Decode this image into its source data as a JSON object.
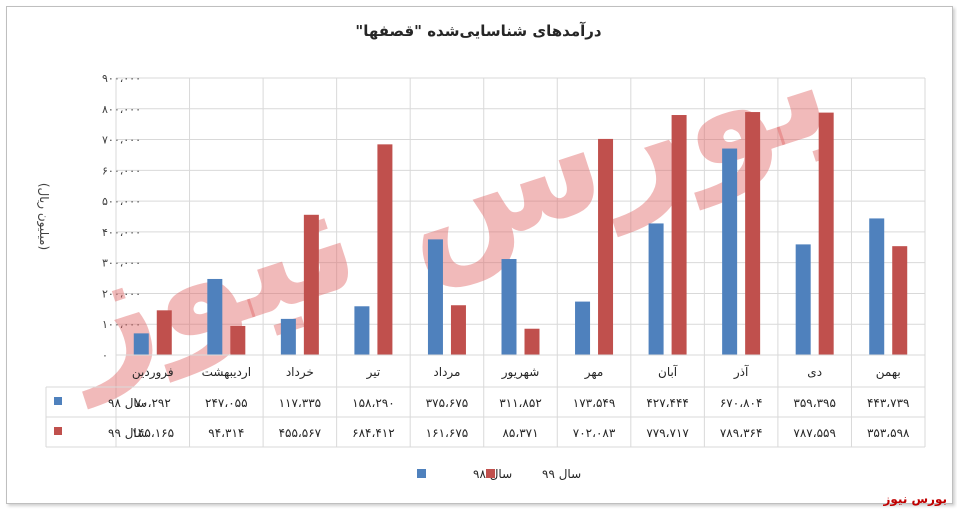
{
  "source_label": "بورس نیوز",
  "chart_data": {
    "type": "bar",
    "title": "درآمدهای شناسایی‌شده \"قصفها\"",
    "ylabel": "(میلیون ریال)",
    "ylim": [
      0,
      900000
    ],
    "yticks": [
      "۰",
      "۱۰۰،۰۰۰",
      "۲۰۰،۰۰۰",
      "۳۰۰،۰۰۰",
      "۴۰۰،۰۰۰",
      "۵۰۰،۰۰۰",
      "۶۰۰،۰۰۰",
      "۷۰۰،۰۰۰",
      "۸۰۰،۰۰۰",
      "۹۰۰،۰۰۰"
    ],
    "categories": [
      "فروردین",
      "اردیبهشت",
      "خرداد",
      "تیر",
      "مرداد",
      "شهریور",
      "مهر",
      "آبان",
      "آذر",
      "دی",
      "بهمن"
    ],
    "legend_position": "bottom",
    "grid": true,
    "series": [
      {
        "name": "سال ۹۸",
        "color": "#4f81bd",
        "values": [
          70292,
          247055,
          117335,
          158290,
          375675,
          311852,
          173549,
          427444,
          670804,
          359395,
          443739
        ],
        "labels": [
          "۷۰،۲۹۲",
          "۲۴۷،۰۵۵",
          "۱۱۷،۳۳۵",
          "۱۵۸،۲۹۰",
          "۳۷۵،۶۷۵",
          "۳۱۱،۸۵۲",
          "۱۷۳،۵۴۹",
          "۴۲۷،۴۴۴",
          "۶۷۰،۸۰۴",
          "۳۵۹،۳۹۵",
          "۴۴۳،۷۳۹"
        ]
      },
      {
        "name": "سال ۹۹",
        "color": "#c0504d",
        "values": [
          145165,
          94314,
          455567,
          684412,
          161675,
          85371,
          702083,
          779717,
          789364,
          787559,
          353598
        ],
        "labels": [
          "۱۴۵،۱۶۵",
          "۹۴،۳۱۴",
          "۴۵۵،۵۶۷",
          "۶۸۴،۴۱۲",
          "۱۶۱،۶۷۵",
          "۸۵،۳۷۱",
          "۷۰۲،۰۸۳",
          "۷۷۹،۷۱۷",
          "۷۸۹،۳۶۴",
          "۷۸۷،۵۵۹",
          "۳۵۳،۵۹۸"
        ]
      }
    ]
  }
}
